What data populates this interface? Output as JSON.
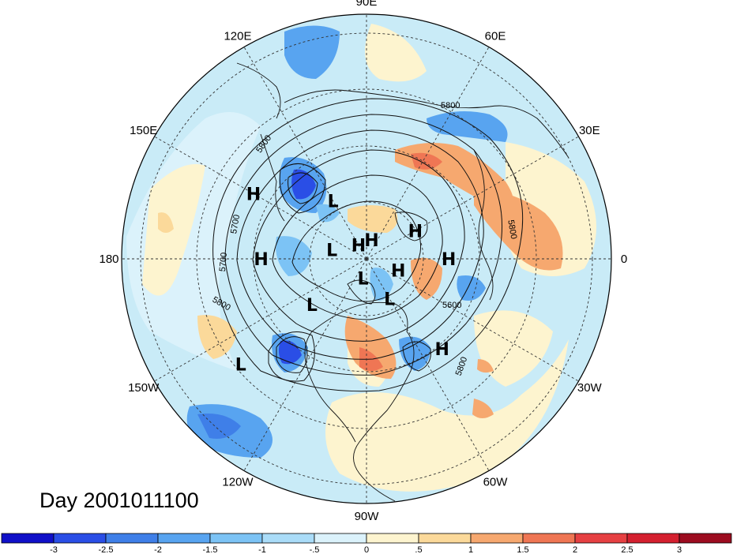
{
  "title": "Day 2001011100",
  "longitude_labels": [
    {
      "text": "90E",
      "lon": 90
    },
    {
      "text": "60E",
      "lon": 60
    },
    {
      "text": "30E",
      "lon": 30
    },
    {
      "text": "0",
      "lon": 0
    },
    {
      "text": "30W",
      "lon": -30
    },
    {
      "text": "60W",
      "lon": -60
    },
    {
      "text": "90W",
      "lon": -90
    },
    {
      "text": "120W",
      "lon": -120
    },
    {
      "text": "150W",
      "lon": -150
    },
    {
      "text": "180",
      "lon": 180
    },
    {
      "text": "150E",
      "lon": 150
    },
    {
      "text": "120E",
      "lon": 120
    }
  ],
  "pressure_centers": [
    {
      "type": "H",
      "lon": 0,
      "lat": 50
    },
    {
      "type": "H",
      "lon": 30,
      "lat": 62
    },
    {
      "type": "H",
      "lon": -20,
      "lat": 73
    },
    {
      "type": "H",
      "lon": 75,
      "lat": 80
    },
    {
      "type": "H",
      "lon": 120,
      "lat": 82
    },
    {
      "type": "H",
      "lon": 150,
      "lat": 30
    },
    {
      "type": "H",
      "lon": 180,
      "lat": 40
    },
    {
      "type": "H",
      "lon": -50,
      "lat": 35
    },
    {
      "type": "L",
      "lon": 120,
      "lat": 57
    },
    {
      "type": "L",
      "lon": 165,
      "lat": 72
    },
    {
      "type": "L",
      "lon": -100,
      "lat": 80
    },
    {
      "type": "L",
      "lon": -60,
      "lat": 67
    },
    {
      "type": "L",
      "lon": -140,
      "lat": 55
    },
    {
      "type": "L",
      "lon": -140,
      "lat": 18
    }
  ],
  "contour_labels": [
    "5800",
    "5800",
    "5700",
    "5700",
    "5800",
    "5800",
    "5600",
    "5800"
  ],
  "colorbar": {
    "labels": [
      "-3",
      "-2.5",
      "-2",
      "-1.5",
      "-1",
      "-.5",
      "0",
      ".5",
      "1",
      "1.5",
      "2",
      "2.5",
      "3"
    ],
    "colors": [
      "#1010c8",
      "#2a4ee6",
      "#3f7fe8",
      "#58a4f0",
      "#7cc3f5",
      "#aadcf8",
      "#dbf2fb",
      "#fdf4cf",
      "#fbd99a",
      "#f6a86f",
      "#ef7654",
      "#e64042",
      "#d4202f",
      "#9c0c1f"
    ]
  },
  "field_colors": {
    "ocean_base": "#c9ebf7",
    "coast": "#111111"
  }
}
